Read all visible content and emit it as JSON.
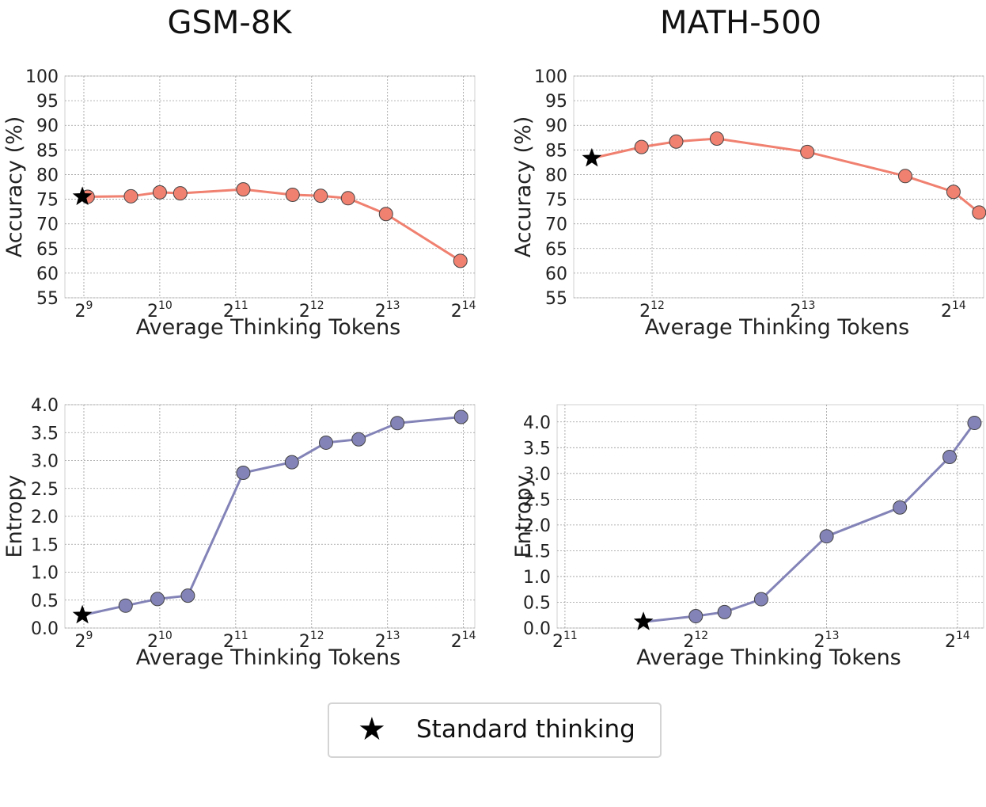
{
  "chart_data": [
    {
      "type": "line",
      "column": "GSM-8K",
      "title": "GSM-8K",
      "xlabel": "Average Thinking Tokens",
      "ylabel": "Accuracy (%)",
      "xscale": "log2",
      "xlim_log2": [
        8.75,
        14.15
      ],
      "xticks": [
        {
          "base": "2",
          "exp": "9",
          "v": 9
        },
        {
          "base": "2",
          "exp": "10",
          "v": 10
        },
        {
          "base": "2",
          "exp": "11",
          "v": 11
        },
        {
          "base": "2",
          "exp": "12",
          "v": 12
        },
        {
          "base": "2",
          "exp": "13",
          "v": 13
        },
        {
          "base": "2",
          "exp": "14",
          "v": 14
        }
      ],
      "ylim": [
        55,
        100
      ],
      "yticks": [
        55,
        60,
        65,
        70,
        75,
        80,
        85,
        90,
        95,
        100
      ],
      "color": "#f08070",
      "series": [
        {
          "name": "accuracy",
          "x_log2": [
            9.05,
            9.62,
            10.0,
            10.27,
            11.1,
            11.75,
            12.12,
            12.48,
            12.98,
            13.96
          ],
          "values": [
            75.5,
            75.6,
            76.4,
            76.2,
            77.0,
            75.9,
            75.7,
            75.2,
            72.0,
            62.5
          ]
        }
      ],
      "standard_point": {
        "x_log2": 8.98,
        "value": 75.5
      }
    },
    {
      "type": "line",
      "column": "MATH-500",
      "title": "MATH-500",
      "xlabel": "Average Thinking Tokens",
      "ylabel": "Accuracy (%)",
      "xscale": "log2",
      "xlim_log2": [
        11.48,
        14.2
      ],
      "xticks": [
        {
          "base": "2",
          "exp": "12",
          "v": 12
        },
        {
          "base": "2",
          "exp": "13",
          "v": 13
        },
        {
          "base": "2",
          "exp": "14",
          "v": 14
        }
      ],
      "ylim": [
        55,
        100
      ],
      "yticks": [
        55,
        60,
        65,
        70,
        75,
        80,
        85,
        90,
        95,
        100
      ],
      "color": "#f08070",
      "series": [
        {
          "name": "accuracy",
          "x_log2": [
            11.93,
            12.16,
            12.43,
            13.03,
            13.68,
            14.0,
            14.17
          ],
          "values": [
            85.6,
            86.7,
            87.3,
            84.6,
            79.7,
            76.5,
            72.3
          ]
        }
      ],
      "standard_point": {
        "x_log2": 11.6,
        "value": 83.3
      }
    },
    {
      "type": "line",
      "column": "GSM-8K",
      "xlabel": "Average Thinking Tokens",
      "ylabel": "Entropy",
      "xscale": "log2",
      "xlim_log2": [
        8.75,
        14.15
      ],
      "xticks": [
        {
          "base": "2",
          "exp": "9",
          "v": 9
        },
        {
          "base": "2",
          "exp": "10",
          "v": 10
        },
        {
          "base": "2",
          "exp": "11",
          "v": 11
        },
        {
          "base": "2",
          "exp": "12",
          "v": 12
        },
        {
          "base": "2",
          "exp": "13",
          "v": 13
        },
        {
          "base": "2",
          "exp": "14",
          "v": 14
        }
      ],
      "ylim": [
        0,
        4.0
      ],
      "yticks": [
        "0.0",
        "0.5",
        "1.0",
        "1.5",
        "2.0",
        "2.5",
        "3.0",
        "3.5",
        "4.0"
      ],
      "color": "#8383b8",
      "series": [
        {
          "name": "entropy",
          "x_log2": [
            9.55,
            9.97,
            10.37,
            11.1,
            11.74,
            12.19,
            12.62,
            13.13,
            13.97
          ],
          "values": [
            0.4,
            0.52,
            0.58,
            2.78,
            2.97,
            3.32,
            3.38,
            3.67,
            3.78
          ]
        }
      ],
      "standard_point": {
        "x_log2": 8.98,
        "value": 0.23
      }
    },
    {
      "type": "line",
      "column": "MATH-500",
      "xlabel": "Average Thinking Tokens",
      "ylabel": "Entropy",
      "xscale": "log2",
      "xlim_log2": [
        10.94,
        14.2
      ],
      "xticks": [
        {
          "base": "2",
          "exp": "11",
          "v": 11
        },
        {
          "base": "2",
          "exp": "12",
          "v": 12
        },
        {
          "base": "2",
          "exp": "13",
          "v": 13
        },
        {
          "base": "2",
          "exp": "14",
          "v": 14
        }
      ],
      "ylim": [
        0,
        4.15
      ],
      "yticks": [
        "0.0",
        "0.5",
        "1.0",
        "1.5",
        "2.0",
        "2.5",
        "3.0",
        "3.5",
        "4.0"
      ],
      "color": "#8383b8",
      "series": [
        {
          "name": "entropy",
          "x_log2": [
            12.0,
            12.22,
            12.5,
            13.0,
            13.56,
            13.94,
            14.13
          ],
          "values": [
            0.23,
            0.31,
            0.56,
            1.78,
            2.34,
            3.32,
            3.98
          ]
        }
      ],
      "standard_point": {
        "x_log2": 11.6,
        "value": 0.12
      }
    }
  ],
  "column_titles": [
    "GSM-8K",
    "MATH-500"
  ],
  "legend": {
    "label": "Standard thinking",
    "marker": "black-star"
  }
}
